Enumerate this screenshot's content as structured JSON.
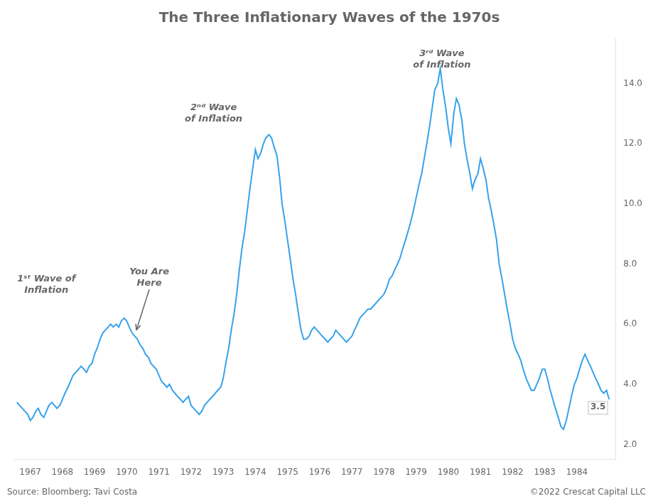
{
  "chart_data": {
    "type": "line",
    "title": "The Three Inflationary Waves of the 1970s",
    "x": [
      1966.58,
      1966.75,
      1966.92,
      1967.0,
      1967.08,
      1967.17,
      1967.25,
      1967.33,
      1967.42,
      1967.5,
      1967.58,
      1967.67,
      1967.75,
      1967.83,
      1967.92,
      1968.0,
      1968.08,
      1968.17,
      1968.25,
      1968.33,
      1968.42,
      1968.5,
      1968.58,
      1968.67,
      1968.75,
      1968.83,
      1968.92,
      1969.0,
      1969.08,
      1969.17,
      1969.25,
      1969.33,
      1969.42,
      1969.5,
      1969.58,
      1969.67,
      1969.75,
      1969.83,
      1969.92,
      1970.0,
      1970.08,
      1970.17,
      1970.25,
      1970.33,
      1970.42,
      1970.5,
      1970.58,
      1970.67,
      1970.75,
      1970.83,
      1970.92,
      1971.0,
      1971.08,
      1971.17,
      1971.25,
      1971.33,
      1971.42,
      1971.5,
      1971.58,
      1971.67,
      1971.75,
      1971.83,
      1971.92,
      1972.0,
      1972.08,
      1972.17,
      1972.25,
      1972.33,
      1972.42,
      1972.5,
      1972.58,
      1972.67,
      1972.75,
      1972.83,
      1972.92,
      1973.0,
      1973.08,
      1973.17,
      1973.25,
      1973.33,
      1973.42,
      1973.5,
      1973.58,
      1973.67,
      1973.75,
      1973.83,
      1973.92,
      1974.0,
      1974.08,
      1974.17,
      1974.25,
      1974.33,
      1974.42,
      1974.5,
      1974.58,
      1974.67,
      1974.75,
      1974.83,
      1974.92,
      1975.0,
      1975.08,
      1975.17,
      1975.25,
      1975.33,
      1975.42,
      1975.5,
      1975.58,
      1975.67,
      1975.75,
      1975.83,
      1975.92,
      1976.0,
      1976.08,
      1976.17,
      1976.25,
      1976.33,
      1976.42,
      1976.5,
      1976.58,
      1976.67,
      1976.75,
      1976.83,
      1976.92,
      1977.0,
      1977.08,
      1977.17,
      1977.25,
      1977.33,
      1977.42,
      1977.5,
      1977.58,
      1977.67,
      1977.75,
      1977.83,
      1977.92,
      1978.0,
      1978.08,
      1978.17,
      1978.25,
      1978.33,
      1978.42,
      1978.5,
      1978.58,
      1978.67,
      1978.75,
      1978.83,
      1978.92,
      1979.0,
      1979.08,
      1979.17,
      1979.25,
      1979.33,
      1979.42,
      1979.5,
      1979.58,
      1979.67,
      1979.75,
      1979.83,
      1979.92,
      1980.0,
      1980.08,
      1980.17,
      1980.25,
      1980.33,
      1980.42,
      1980.5,
      1980.58,
      1980.67,
      1980.75,
      1980.83,
      1980.92,
      1981.0,
      1981.08,
      1981.17,
      1981.25,
      1981.33,
      1981.42,
      1981.5,
      1981.58,
      1981.67,
      1981.75,
      1981.83,
      1981.92,
      1982.0,
      1982.08,
      1982.17,
      1982.25,
      1982.33,
      1982.42,
      1982.5,
      1982.58,
      1982.67,
      1982.75,
      1982.83,
      1982.92,
      1983.0,
      1983.08,
      1983.17,
      1983.25,
      1983.33,
      1983.42,
      1983.5,
      1983.58,
      1983.67,
      1983.75,
      1983.83,
      1983.92,
      1984.0,
      1984.08,
      1984.17,
      1984.25,
      1984.33,
      1984.42,
      1984.5,
      1984.58,
      1984.67,
      1984.75,
      1984.83,
      1984.92,
      1985.0
    ],
    "values": [
      3.4,
      3.2,
      3.0,
      2.8,
      2.9,
      3.1,
      3.2,
      3.0,
      2.9,
      3.1,
      3.3,
      3.4,
      3.3,
      3.2,
      3.3,
      3.5,
      3.7,
      3.9,
      4.1,
      4.3,
      4.4,
      4.5,
      4.6,
      4.5,
      4.4,
      4.6,
      4.7,
      5.0,
      5.2,
      5.5,
      5.7,
      5.8,
      5.9,
      6.0,
      5.9,
      6.0,
      5.9,
      6.1,
      6.2,
      6.1,
      5.9,
      5.7,
      5.6,
      5.5,
      5.3,
      5.2,
      5.0,
      4.9,
      4.7,
      4.6,
      4.5,
      4.3,
      4.1,
      4.0,
      3.9,
      4.0,
      3.8,
      3.7,
      3.6,
      3.5,
      3.4,
      3.5,
      3.6,
      3.3,
      3.2,
      3.1,
      3.0,
      3.1,
      3.3,
      3.4,
      3.5,
      3.6,
      3.7,
      3.8,
      3.9,
      4.2,
      4.7,
      5.2,
      5.8,
      6.3,
      7.0,
      7.8,
      8.5,
      9.1,
      9.8,
      10.5,
      11.2,
      11.8,
      11.5,
      11.7,
      12.0,
      12.2,
      12.3,
      12.2,
      11.9,
      11.6,
      10.9,
      10.0,
      9.4,
      8.8,
      8.2,
      7.5,
      7.0,
      6.4,
      5.8,
      5.5,
      5.5,
      5.6,
      5.8,
      5.9,
      5.8,
      5.7,
      5.6,
      5.5,
      5.4,
      5.5,
      5.6,
      5.8,
      5.7,
      5.6,
      5.5,
      5.4,
      5.5,
      5.6,
      5.8,
      6.0,
      6.2,
      6.3,
      6.4,
      6.5,
      6.5,
      6.6,
      6.7,
      6.8,
      6.9,
      7.0,
      7.2,
      7.5,
      7.6,
      7.8,
      8.0,
      8.2,
      8.5,
      8.8,
      9.1,
      9.4,
      9.8,
      10.2,
      10.6,
      11.0,
      11.5,
      12.0,
      12.6,
      13.2,
      13.8,
      14.0,
      14.5,
      13.8,
      13.2,
      12.5,
      12.0,
      13.0,
      13.5,
      13.3,
      12.8,
      12.0,
      11.5,
      11.0,
      10.5,
      10.8,
      11.0,
      11.5,
      11.2,
      10.8,
      10.2,
      9.8,
      9.3,
      8.8,
      8.0,
      7.5,
      7.0,
      6.5,
      6.0,
      5.5,
      5.2,
      5.0,
      4.8,
      4.5,
      4.2,
      4.0,
      3.8,
      3.8,
      4.0,
      4.2,
      4.5,
      4.5,
      4.2,
      3.8,
      3.5,
      3.2,
      2.9,
      2.6,
      2.5,
      2.8,
      3.2,
      3.6,
      4.0,
      4.2,
      4.5,
      4.8,
      5.0,
      4.8,
      4.6,
      4.4,
      4.2,
      4.0,
      3.8,
      3.7,
      3.8,
      3.5
    ],
    "xlim": [
      1966.5,
      1985.2
    ],
    "xticks": [
      1967,
      1968,
      1969,
      1970,
      1971,
      1972,
      1973,
      1974,
      1975,
      1976,
      1977,
      1978,
      1979,
      1980,
      1981,
      1982,
      1983,
      1984
    ],
    "ylim": [
      1.5,
      15.5
    ],
    "yticks": [
      {
        "value": 2.0,
        "label": "2.0"
      },
      {
        "value": 4.0,
        "label": "4.0"
      },
      {
        "value": 6.0,
        "label": "6.0"
      },
      {
        "value": 8.0,
        "label": "8.0"
      },
      {
        "value": 10.0,
        "label": "10.0"
      },
      {
        "value": 12.0,
        "label": "12.0"
      },
      {
        "value": 14.0,
        "label": "14.0"
      }
    ],
    "grid": false,
    "annotations": [
      {
        "text": "1ˢᵗ Wave of\nInflation",
        "x": 1967.5,
        "y": 7.3
      },
      {
        "text": "You Are\nHere",
        "x": 1970.7,
        "y": 7.2,
        "arrow_to": [
          1970.3,
          5.8
        ]
      },
      {
        "text": "2ⁿᵈ Wave\nof Inflation",
        "x": 1972.7,
        "y": 13.0
      },
      {
        "text": "3ʳᵈ Wave\nof Inflation",
        "x": 1979.8,
        "y": 14.8
      },
      {
        "text": "3.5",
        "x": 1985.0,
        "y": 3.5
      }
    ],
    "source": "Source: Bloomberg; Tavi Costa",
    "copyright": "©2022 Crescat Capital LLC"
  }
}
